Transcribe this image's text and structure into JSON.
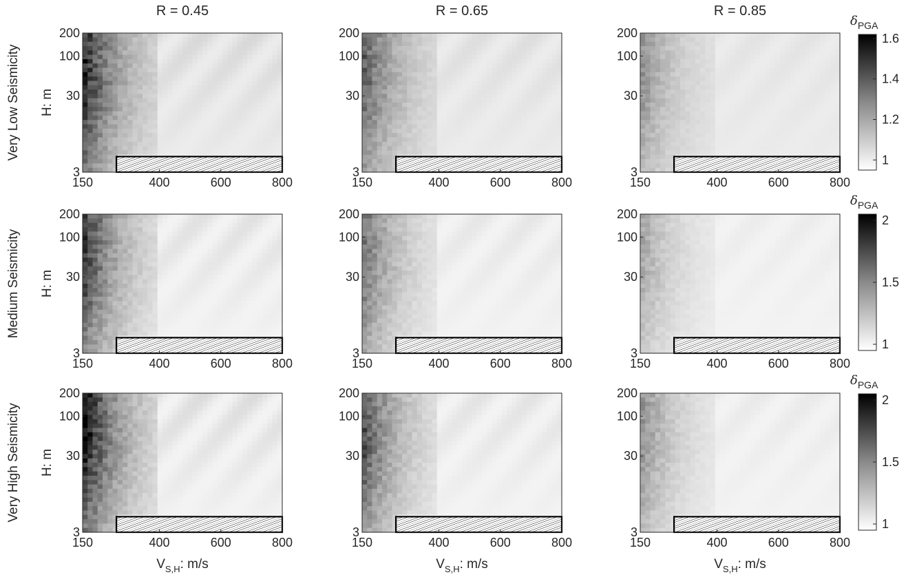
{
  "figure": {
    "column_titles": [
      "R = 0.45",
      "R = 0.65",
      "R = 0.85"
    ],
    "row_labels": [
      "Very Low Seismicity",
      "Medium Seismicity",
      "Very High Seismicity"
    ],
    "ylabel": "H: m",
    "xlabel_main": "V",
    "xlabel_sub": "S,H",
    "xlabel_unit": ": m/s",
    "colorbar_symbol": "δ",
    "colorbar_sub": "PGA"
  },
  "chart_data": {
    "type": "heatmap",
    "grid": {
      "rows": 3,
      "cols": 3
    },
    "x": {
      "label": "VS,H: m/s",
      "ticks": [
        150,
        400,
        600,
        800
      ],
      "tick_labels": [
        "150",
        "400",
        "600",
        "800"
      ],
      "lim": [
        150,
        800
      ]
    },
    "y": {
      "label": "H: m",
      "scale": "log",
      "ticks": [
        3,
        30,
        100,
        200
      ],
      "tick_labels": [
        "3",
        "30",
        "100",
        "200"
      ],
      "lim": [
        3,
        200
      ]
    },
    "colormap": "gray-reversed",
    "hatched_region": {
      "x": [
        260,
        800
      ],
      "y": [
        3,
        4.8
      ]
    },
    "colorbars": [
      {
        "ticks": [
          1,
          1.2,
          1.4,
          1.6
        ],
        "tick_labels": [
          "1",
          "1.2",
          "1.4",
          "1.6"
        ],
        "range": [
          0.95,
          1.62
        ]
      },
      {
        "ticks": [
          1,
          1.5,
          2
        ],
        "tick_labels": [
          "1",
          "1.5",
          "2"
        ],
        "range": [
          0.95,
          2.05
        ]
      },
      {
        "ticks": [
          1,
          1.5,
          2
        ],
        "tick_labels": [
          "1",
          "1.5",
          "2"
        ],
        "range": [
          0.95,
          2.05
        ]
      }
    ],
    "panels": [
      {
        "row": 0,
        "col": 0,
        "R": 0.45,
        "seismicity": "Very Low",
        "peak": 1.55
      },
      {
        "row": 0,
        "col": 1,
        "R": 0.65,
        "seismicity": "Very Low",
        "peak": 1.4
      },
      {
        "row": 0,
        "col": 2,
        "R": 0.85,
        "seismicity": "Very Low",
        "peak": 1.25
      },
      {
        "row": 1,
        "col": 0,
        "R": 0.45,
        "seismicity": "Medium",
        "peak": 1.85
      },
      {
        "row": 1,
        "col": 1,
        "R": 0.65,
        "seismicity": "Medium",
        "peak": 1.6
      },
      {
        "row": 1,
        "col": 2,
        "R": 0.85,
        "seismicity": "Medium",
        "peak": 1.35
      },
      {
        "row": 2,
        "col": 0,
        "R": 0.45,
        "seismicity": "Very High",
        "peak": 2.05
      },
      {
        "row": 2,
        "col": 1,
        "R": 0.65,
        "seismicity": "Very High",
        "peak": 1.75
      },
      {
        "row": 2,
        "col": 2,
        "R": 0.85,
        "seismicity": "Very High",
        "peak": 1.45
      }
    ]
  }
}
